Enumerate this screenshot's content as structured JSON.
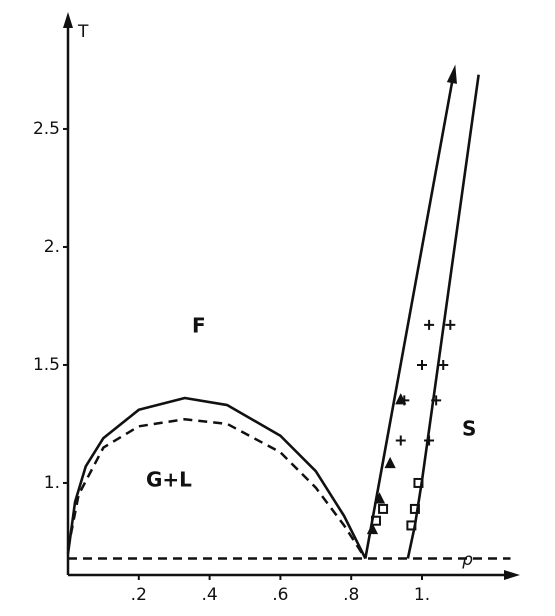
{
  "chart_data": {
    "type": "line",
    "axis_labels": {
      "y": "T",
      "x": "ρ"
    },
    "annotations": [
      "F",
      "G+L",
      "S"
    ],
    "xlim": [
      0,
      1.25
    ],
    "ylim": [
      0.61,
      2.96
    ],
    "xticks": [
      {
        "value": 0.2,
        "label": ".2"
      },
      {
        "value": 0.4,
        "label": ".4"
      },
      {
        "value": 0.6,
        "label": ".6"
      },
      {
        "value": 0.8,
        "label": ".8"
      },
      {
        "value": 1.0,
        "label": "1."
      }
    ],
    "yticks": [
      {
        "value": 1.0,
        "label": "1."
      },
      1.5,
      {
        "value": 2.0,
        "label": "2."
      },
      {
        "value": 2.5,
        "label": "2.5"
      }
    ],
    "series": [
      {
        "color": "#111",
        "style": "solid",
        "x": [
          0,
          0.02,
          0.05,
          0.1,
          0.2,
          0.33,
          0.45,
          0.6,
          0.7,
          0.78,
          0.84
        ],
        "values": [
          0.7,
          0.92,
          1.07,
          1.19,
          1.31,
          1.36,
          1.33,
          1.2,
          1.05,
          0.86,
          0.68
        ]
      },
      {
        "color": "#111",
        "style": "dashed",
        "x": [
          0,
          0.03,
          0.1,
          0.2,
          0.33,
          0.45,
          0.6,
          0.7,
          0.78,
          0.84
        ],
        "values": [
          0.72,
          0.95,
          1.15,
          1.24,
          1.27,
          1.25,
          1.13,
          0.98,
          0.82,
          0.68
        ]
      },
      {
        "color": "#111",
        "style": "arrow",
        "x": [
          0.84,
          1.09
        ],
        "values": [
          0.68,
          2.74
        ]
      },
      {
        "color": "#111",
        "style": "solid",
        "x": [
          0.96,
          0.98,
          1.0,
          1.16
        ],
        "values": [
          0.68,
          0.82,
          1.01,
          2.73
        ]
      },
      {
        "color": "#111",
        "style": "dashed",
        "x": [
          0,
          1.25
        ],
        "values": [
          0.68,
          0.68
        ]
      },
      {
        "color": "#111",
        "marker": "plus",
        "x": [
          1.02,
          1.08,
          1.0,
          1.06,
          0.95,
          1.04,
          0.94,
          1.02
        ],
        "values": [
          1.67,
          1.67,
          1.5,
          1.5,
          1.35,
          1.35,
          1.18,
          1.18
        ]
      },
      {
        "color": "#111",
        "marker": "square",
        "x": [
          0.99,
          0.98,
          0.97,
          0.89,
          0.87
        ],
        "values": [
          1.0,
          0.89,
          0.82,
          0.89,
          0.84
        ]
      },
      {
        "color": "#111",
        "marker": "triangle",
        "x": [
          0.94,
          0.91,
          0.88,
          0.86
        ],
        "values": [
          1.35,
          1.08,
          0.93,
          0.8
        ]
      }
    ]
  }
}
